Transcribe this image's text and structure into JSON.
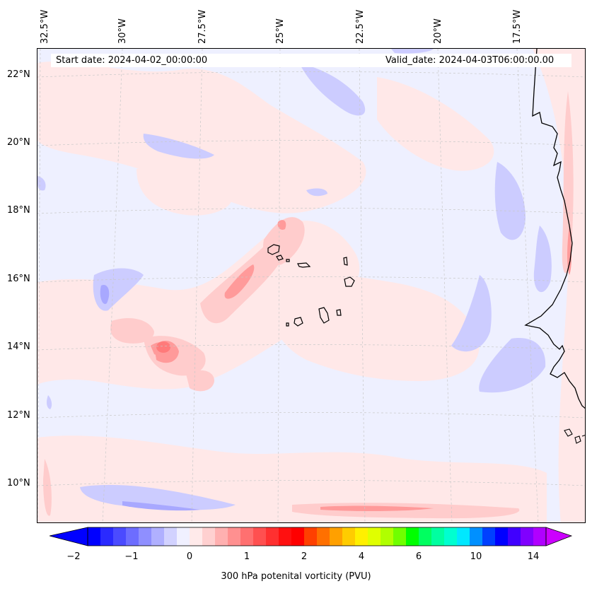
{
  "map": {
    "start_date": "Start date: 2024-04-02_00:00:00",
    "valid_date": "Valid_date: 2024-04-03T06:00:00.00",
    "lon_labels": [
      "32.5°W",
      "30°W",
      "27.5°W",
      "25°W",
      "22.5°W",
      "20°W",
      "17.5°W"
    ],
    "lat_labels": [
      "22°N",
      "20°N",
      "18°N",
      "16°N",
      "14°N",
      "12°N",
      "10°N"
    ],
    "gridlines": "dashed-grey",
    "coastline_color": "#000000",
    "features": [
      "Cape Verde islands",
      "West African coast"
    ]
  },
  "colorbar": {
    "label": "300 hPa potenital vorticity (PVU)",
    "ticks": [
      "−2",
      "−1",
      "0",
      "1",
      "2",
      "4",
      "6",
      "10",
      "14"
    ],
    "extend": "both",
    "colors": [
      "#0000ff",
      "#2a2aff",
      "#4b4bff",
      "#6d6dff",
      "#8f8fff",
      "#b0b0ff",
      "#d2d2ff",
      "#f0f0ff",
      "#ffeaea",
      "#ffd0d0",
      "#ffb0b0",
      "#ff9090",
      "#ff7070",
      "#ff5050",
      "#ff3030",
      "#ff1010",
      "#ff0000",
      "#ff4000",
      "#ff7000",
      "#ffa000",
      "#ffcc00",
      "#fff000",
      "#e0ff00",
      "#b0ff00",
      "#70ff00",
      "#00ff00",
      "#00ff60",
      "#00ffa0",
      "#00ffd0",
      "#00e8ff",
      "#0090ff",
      "#0040ff",
      "#0000ff",
      "#4000ff",
      "#8000ff",
      "#b000ff"
    ],
    "under_color": "#0000ff",
    "over_color": "#cc00ff"
  }
}
